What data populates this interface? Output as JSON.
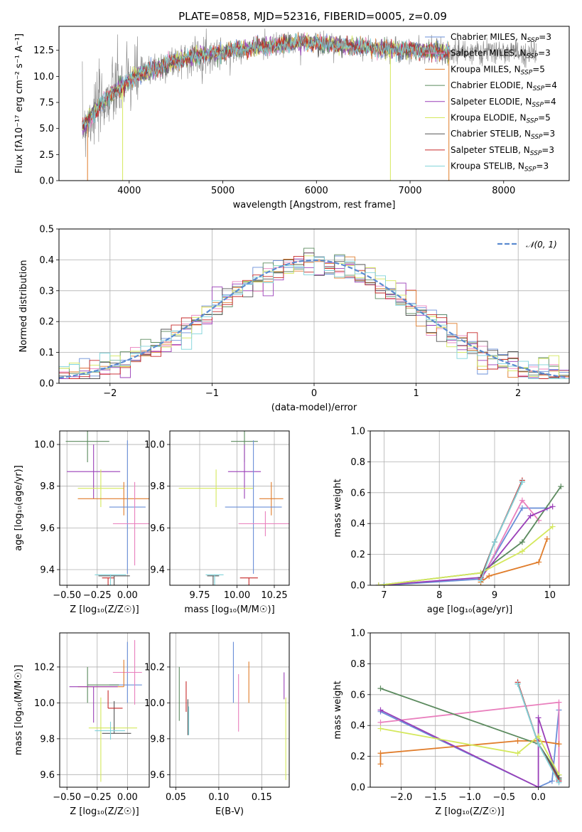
{
  "colors": {
    "chabrier_miles": "#6a8fd8",
    "salpeter_miles": "#e97fbd",
    "kroupa_miles": "#e07c2a",
    "chabrier_elodie": "#5b8a5e",
    "salpeter_elodie": "#9a3fb8",
    "kroupa_elodie": "#d4e85c",
    "chabrier_stelib": "#555555",
    "salpeter_stelib": "#c62828",
    "kroupa_stelib": "#7fd3da"
  },
  "chart_data": [
    {
      "id": "spectrum",
      "type": "line",
      "title": "PLATE=0858, MJD=52316, FIBERID=0005, z=0.09",
      "xlabel": "wavelength [Angstrom, rest frame]",
      "ylabel": "Flux [fλ10⁻¹⁷ erg cm⁻² s⁻¹ A⁻¹]",
      "xlim": [
        3250,
        8700
      ],
      "ylim": [
        0,
        14.8
      ],
      "xticks": [
        "4000",
        "5000",
        "6000",
        "7000",
        "8000"
      ],
      "yticks": [
        "0.0",
        "2.5",
        "5.0",
        "7.5",
        "10.0",
        "12.5"
      ],
      "grid": false,
      "legend_position": "right",
      "legend": [
        {
          "label": "Chabrier MILES, N",
          "sub": "SSP",
          "suffix": "=3",
          "color": "#6a8fd8"
        },
        {
          "label": "Salpeter MILES, N",
          "sub": "SSP",
          "suffix": "=3",
          "color": "#e97fbd"
        },
        {
          "label": "Kroupa MILES, N",
          "sub": "SSP",
          "suffix": "=5",
          "color": "#e07c2a"
        },
        {
          "label": "Chabrier ELODIE, N",
          "sub": "SSP",
          "suffix": "=4",
          "color": "#5b8a5e"
        },
        {
          "label": "Salpeter ELODIE, N",
          "sub": "SSP",
          "suffix": "=4",
          "color": "#9a3fb8"
        },
        {
          "label": "Kroupa ELODIE, N",
          "sub": "SSP",
          "suffix": "=5",
          "color": "#d4e85c"
        },
        {
          "label": "Chabrier STELIB, N",
          "sub": "SSP",
          "suffix": "=3",
          "color": "#555555"
        },
        {
          "label": "Salpeter STELIB, N",
          "sub": "SSP",
          "suffix": "=3",
          "color": "#c62828"
        },
        {
          "label": "Kroupa STELIB, N",
          "sub": "SSP",
          "suffix": "=3",
          "color": "#7fd3da"
        }
      ],
      "continuum": {
        "x": [
          3500,
          3600,
          3700,
          3800,
          3900,
          4000,
          4100,
          4300,
          4500,
          4800,
          5000,
          5200,
          5500,
          5800,
          6000,
          6300,
          6600,
          7000,
          7300,
          7400
        ],
        "y": [
          5.2,
          6.2,
          7.3,
          8.2,
          8.9,
          9.6,
          10.2,
          10.8,
          11.5,
          12.1,
          12.3,
          12.6,
          12.9,
          13.3,
          13.2,
          12.9,
          12.7,
          12.5,
          12.4,
          12.3
        ]
      },
      "data_range": [
        3500,
        8350
      ],
      "model_range": [
        3500,
        7420
      ]
    },
    {
      "id": "residuals",
      "type": "histogram",
      "xlabel": "(data-model)/error",
      "ylabel": "Normed distribution",
      "xlim": [
        -2.5,
        2.5
      ],
      "ylim": [
        0,
        0.5
      ],
      "xticks": [
        "−2",
        "−1",
        "0",
        "1",
        "2"
      ],
      "yticks": [
        "0.0",
        "0.1",
        "0.2",
        "0.3",
        "0.4",
        "0.5"
      ],
      "grid": true,
      "legend_position": "top-right",
      "reference_label": "𝒩(0, 1)",
      "reference_color": "#5b8bd0",
      "bin_width": 0.1
    },
    {
      "id": "age-vs-z",
      "type": "errorbar",
      "xlabel": "Z [log₁₀(Z/Z☉)]",
      "ylabel": "age  [log₁₀(age/yr)]",
      "xlim": [
        -0.56,
        0.18
      ],
      "ylim": [
        9.325,
        10.065
      ],
      "xticks": [
        "−0.50",
        "−0.25",
        "0.00"
      ],
      "yticks": [
        "9.4",
        "9.6",
        "9.8",
        "10.0"
      ],
      "grid": true,
      "points": [
        {
          "color": "#5b8a5e",
          "x": -0.33,
          "xerr": [
            0.18,
            0.18
          ],
          "y": 10.015,
          "yerr": [
            0.1,
            0.1
          ]
        },
        {
          "color": "#9a3fb8",
          "x": -0.28,
          "xerr": [
            0.22,
            0.22
          ],
          "y": 9.87,
          "yerr": [
            0.13,
            0.13
          ]
        },
        {
          "color": "#d4e85c",
          "x": -0.22,
          "xerr": [
            0.19,
            0.19
          ],
          "y": 9.79,
          "yerr": [
            0.09,
            0.09
          ]
        },
        {
          "color": "#e07c2a",
          "x": -0.03,
          "xerr": [
            0.38,
            0.38
          ],
          "y": 9.74,
          "yerr": [
            0.08,
            0.08
          ]
        },
        {
          "color": "#6a8fd8",
          "x": 0.0,
          "xerr": [
            0.15,
            0.15
          ],
          "y": 9.7,
          "yerr": [
            0.32,
            0.32
          ]
        },
        {
          "color": "#e97fbd",
          "x": 0.06,
          "xerr": [
            0.18,
            0.18
          ],
          "y": 9.62,
          "yerr": [
            0.2,
            0.2
          ]
        },
        {
          "color": "#555555",
          "x": -0.11,
          "xerr": [
            0.13,
            0.13
          ],
          "y": 9.37,
          "yerr": [
            0.41,
            0.0
          ]
        },
        {
          "color": "#c62828",
          "x": -0.16,
          "xerr": [
            0.05,
            0.05
          ],
          "y": 9.36,
          "yerr": [
            0.33,
            0.0
          ]
        },
        {
          "color": "#7fd3da",
          "x": -0.14,
          "xerr": [
            0.13,
            0.13
          ],
          "y": 9.375,
          "yerr": [
            0.41,
            0.0
          ]
        }
      ]
    },
    {
      "id": "age-vs-mass",
      "type": "errorbar",
      "xlabel": "mass [log₁₀(M/M☉)]",
      "ylabel": "",
      "xlim": [
        9.55,
        10.35
      ],
      "ylim": [
        9.325,
        10.065
      ],
      "xticks": [
        "9.75",
        "10.00",
        "10.25"
      ],
      "yticks": [
        "9.4",
        "9.6",
        "9.8",
        "10.0"
      ],
      "grid": true,
      "points": [
        {
          "color": "#5b8a5e",
          "x": 10.05,
          "xerr": [
            0.09,
            0.09
          ],
          "y": 10.015,
          "yerr": [
            0.1,
            0.1
          ]
        },
        {
          "color": "#9a3fb8",
          "x": 10.05,
          "xerr": [
            0.11,
            0.11
          ],
          "y": 9.87,
          "yerr": [
            0.13,
            0.13
          ]
        },
        {
          "color": "#d4e85c",
          "x": 9.86,
          "xerr": [
            0.25,
            0.25
          ],
          "y": 9.79,
          "yerr": [
            0.09,
            0.09
          ]
        },
        {
          "color": "#e07c2a",
          "x": 10.23,
          "xerr": [
            0.08,
            0.08
          ],
          "y": 9.74,
          "yerr": [
            0.08,
            0.08
          ]
        },
        {
          "color": "#6a8fd8",
          "x": 10.11,
          "xerr": [
            0.19,
            0.19
          ],
          "y": 9.7,
          "yerr": [
            0.32,
            0.32
          ]
        },
        {
          "color": "#e97fbd",
          "x": 10.19,
          "xerr": [
            0.18,
            0.18
          ],
          "y": 9.62,
          "yerr": [
            0.06,
            0.06
          ]
        },
        {
          "color": "#555555",
          "x": 9.84,
          "xerr": [
            0.04,
            0.04
          ],
          "y": 9.37,
          "yerr": [
            0.41,
            0.0
          ]
        },
        {
          "color": "#c62828",
          "x": 10.08,
          "xerr": [
            0.06,
            0.06
          ],
          "y": 9.36,
          "yerr": [
            0.36,
            0.0
          ]
        },
        {
          "color": "#7fd3da",
          "x": 9.85,
          "xerr": [
            0.06,
            0.06
          ],
          "y": 9.375,
          "yerr": [
            0.41,
            0.0
          ]
        }
      ]
    },
    {
      "id": "weight-vs-age",
      "type": "line",
      "xlabel": "age  [log₁₀(age/yr)]",
      "ylabel": "mass weight",
      "xlim": [
        6.75,
        10.35
      ],
      "ylim": [
        0,
        1
      ],
      "xticks": [
        "7",
        "8",
        "9",
        "10"
      ],
      "yticks": [
        "0.0",
        "0.2",
        "0.4",
        "0.6",
        "0.8",
        "1.0"
      ],
      "grid": true,
      "series": [
        {
          "color": "#6a8fd8",
          "x": [
            7.0,
            8.75,
            9.5,
            9.95
          ],
          "y": [
            0.0,
            0.04,
            0.5,
            0.5
          ]
        },
        {
          "color": "#e97fbd",
          "x": [
            8.75,
            9.5,
            9.8
          ],
          "y": [
            0.03,
            0.55,
            0.42
          ]
        },
        {
          "color": "#e07c2a",
          "x": [
            8.75,
            8.9,
            9.8,
            9.95
          ],
          "y": [
            0.02,
            0.06,
            0.15,
            0.3
          ]
        },
        {
          "color": "#5b8a5e",
          "x": [
            6.9,
            8.75,
            9.5,
            10.2
          ],
          "y": [
            0.0,
            0.08,
            0.28,
            0.64
          ]
        },
        {
          "color": "#9a3fb8",
          "x": [
            6.9,
            8.75,
            9.65,
            10.05
          ],
          "y": [
            0.0,
            0.05,
            0.45,
            0.51
          ]
        },
        {
          "color": "#d4e85c",
          "x": [
            6.9,
            8.75,
            9.5,
            10.05
          ],
          "y": [
            0.0,
            0.08,
            0.22,
            0.38
          ]
        },
        {
          "color": "#555555",
          "x": [
            8.75,
            9.0,
            9.5
          ],
          "y": [
            0.05,
            0.28,
            0.67
          ]
        },
        {
          "color": "#c62828",
          "x": [
            8.75,
            9.0,
            9.5
          ],
          "y": [
            0.04,
            0.28,
            0.68
          ]
        },
        {
          "color": "#7fd3da",
          "x": [
            8.75,
            9.0,
            9.5
          ],
          "y": [
            0.03,
            0.28,
            0.67
          ]
        }
      ]
    },
    {
      "id": "mass-vs-z",
      "type": "errorbar",
      "xlabel": "Z [log₁₀(Z/Z☉)]",
      "ylabel": "mass [log₁₀(M/M☉)]",
      "xlim": [
        -0.56,
        0.18
      ],
      "ylim": [
        9.53,
        10.39
      ],
      "xticks": [
        "−0.50",
        "−0.25",
        "0.00"
      ],
      "yticks": [
        "9.6",
        "9.8",
        "10.0",
        "10.2"
      ],
      "grid": true,
      "points": [
        {
          "color": "#6a8fd8",
          "x": 0.0,
          "xerr": [
            0.15,
            0.12
          ],
          "y": 10.1,
          "yerr": [
            0.1,
            0.24
          ]
        },
        {
          "color": "#e97fbd",
          "x": 0.06,
          "xerr": [
            0.18,
            0.06
          ],
          "y": 10.17,
          "yerr": [
            0.18,
            0.18
          ]
        },
        {
          "color": "#e07c2a",
          "x": -0.03,
          "xerr": [
            0.38,
            0.0
          ],
          "y": 10.09,
          "yerr": [
            0.0,
            0.15
          ]
        },
        {
          "color": "#5b8a5e",
          "x": -0.33,
          "xerr": [
            0.0,
            0.26
          ],
          "y": 10.1,
          "yerr": [
            0.1,
            0.1
          ]
        },
        {
          "color": "#9a3fb8",
          "x": -0.28,
          "xerr": [
            0.2,
            0.2
          ],
          "y": 10.09,
          "yerr": [
            0.2,
            0.0
          ]
        },
        {
          "color": "#d4e85c",
          "x": -0.22,
          "xerr": [
            0.1,
            0.3
          ],
          "y": 9.86,
          "yerr": [
            0.3,
            0.17
          ]
        },
        {
          "color": "#555555",
          "x": -0.11,
          "xerr": [
            0.1,
            0.14
          ],
          "y": 9.83,
          "yerr": [
            0.0,
            0.18
          ]
        },
        {
          "color": "#c62828",
          "x": -0.16,
          "xerr": [
            0.0,
            0.12
          ],
          "y": 9.97,
          "yerr": [
            0.0,
            0.1
          ]
        },
        {
          "color": "#7fd3da",
          "x": -0.14,
          "xerr": [
            0.13,
            0.12
          ],
          "y": 9.845,
          "yerr": [
            0.05,
            0.05
          ]
        }
      ]
    },
    {
      "id": "mass-vs-ebv",
      "type": "errorbar",
      "xlabel": "E(B-V)",
      "ylabel": "",
      "xlim": [
        0.043,
        0.182
      ],
      "ylim": [
        9.53,
        10.39
      ],
      "xticks": [
        "0.05",
        "0.10",
        "0.15"
      ],
      "yticks": [
        "9.6",
        "9.8",
        "10.0",
        "10.2"
      ],
      "grid": true,
      "points": [
        {
          "color": "#6a8fd8",
          "x": 0.117,
          "y": 10.14,
          "yerr": [
            0.14,
            0.2
          ]
        },
        {
          "color": "#e97fbd",
          "x": 0.123,
          "y": 10.0,
          "yerr": [
            0.16,
            0.16
          ]
        },
        {
          "color": "#e07c2a",
          "x": 0.135,
          "y": 10.11,
          "yerr": [
            0.11,
            0.12
          ]
        },
        {
          "color": "#5b8a5e",
          "x": 0.054,
          "y": 10.07,
          "yerr": [
            0.17,
            0.13
          ]
        },
        {
          "color": "#9a3fb8",
          "x": 0.176,
          "y": 10.09,
          "yerr": [
            0.07,
            0.08
          ]
        },
        {
          "color": "#d4e85c",
          "x": 0.178,
          "y": 9.78,
          "yerr": [
            0.21,
            0.25
          ]
        },
        {
          "color": "#555555",
          "x": 0.064,
          "y": 9.92,
          "yerr": [
            0.1,
            0.1
          ]
        },
        {
          "color": "#c62828",
          "x": 0.062,
          "y": 10.03,
          "yerr": [
            0.08,
            0.09
          ]
        },
        {
          "color": "#7fd3da",
          "x": 0.065,
          "y": 9.9,
          "yerr": [
            0.08,
            0.08
          ]
        }
      ]
    },
    {
      "id": "weight-vs-z",
      "type": "line",
      "xlabel": "Z [log₁₀(Z/Z☉)]",
      "ylabel": "mass weight",
      "xlim": [
        -2.45,
        0.45
      ],
      "ylim": [
        0,
        1
      ],
      "xticks": [
        "−2.0",
        "−1.5",
        "−1.0",
        "−0.5",
        "0.0"
      ],
      "yticks": [
        "0.0",
        "0.2",
        "0.4",
        "0.6",
        "0.8",
        "1.0"
      ],
      "grid": true,
      "series": [
        {
          "color": "#6a8fd8",
          "x": [
            -2.3,
            0.0,
            0.2,
            0.3
          ],
          "y": [
            0.49,
            0.0,
            0.04,
            0.5
          ]
        },
        {
          "color": "#e97fbd",
          "x": [
            -2.3,
            0.3,
            0.3
          ],
          "y": [
            0.42,
            0.55,
            0.03
          ]
        },
        {
          "color": "#e07c2a",
          "x": [
            -2.3,
            -2.3,
            -0.3,
            0.0,
            0.3
          ],
          "y": [
            0.15,
            0.22,
            0.3,
            0.3,
            0.28
          ]
        },
        {
          "color": "#5b8a5e",
          "x": [
            -2.3,
            0.0,
            0.3,
            0.3
          ],
          "y": [
            0.64,
            0.28,
            0.08,
            0.05
          ]
        },
        {
          "color": "#9a3fb8",
          "x": [
            -2.3,
            0.0,
            0.0,
            0.3
          ],
          "y": [
            0.5,
            0.0,
            0.45,
            0.04
          ]
        },
        {
          "color": "#d4e85c",
          "x": [
            -2.3,
            -0.3,
            0.0,
            0.3
          ],
          "y": [
            0.38,
            0.22,
            0.33,
            0.08
          ]
        },
        {
          "color": "#555555",
          "x": [
            -0.3,
            0.0,
            0.3
          ],
          "y": [
            0.67,
            0.28,
            0.06
          ]
        },
        {
          "color": "#c62828",
          "x": [
            -0.3,
            0.0,
            0.3
          ],
          "y": [
            0.68,
            0.28,
            0.04
          ]
        },
        {
          "color": "#7fd3da",
          "x": [
            -0.3,
            0.0,
            0.3
          ],
          "y": [
            0.67,
            0.28,
            0.03
          ]
        }
      ]
    }
  ]
}
